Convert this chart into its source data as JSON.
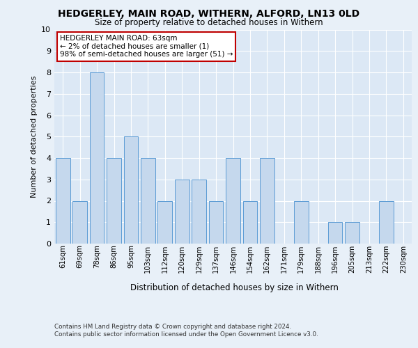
{
  "title1": "HEDGERLEY, MAIN ROAD, WITHERN, ALFORD, LN13 0LD",
  "title2": "Size of property relative to detached houses in Withern",
  "xlabel": "Distribution of detached houses by size in Withern",
  "ylabel": "Number of detached properties",
  "categories": [
    "61sqm",
    "69sqm",
    "78sqm",
    "86sqm",
    "95sqm",
    "103sqm",
    "112sqm",
    "120sqm",
    "129sqm",
    "137sqm",
    "146sqm",
    "154sqm",
    "162sqm",
    "171sqm",
    "179sqm",
    "188sqm",
    "196sqm",
    "205sqm",
    "213sqm",
    "222sqm",
    "230sqm"
  ],
  "values": [
    4,
    2,
    8,
    4,
    5,
    4,
    2,
    3,
    3,
    2,
    4,
    2,
    4,
    0,
    2,
    0,
    1,
    1,
    0,
    2,
    0
  ],
  "bar_color": "#c5d8ed",
  "bar_edge_color": "#5b9bd5",
  "highlight_color": "#c00000",
  "annotation_title": "HEDGERLEY MAIN ROAD: 63sqm",
  "annotation_line1": "← 2% of detached houses are smaller (1)",
  "annotation_line2": "98% of semi-detached houses are larger (51) →",
  "ylim": [
    0,
    10
  ],
  "yticks": [
    0,
    1,
    2,
    3,
    4,
    5,
    6,
    7,
    8,
    9,
    10
  ],
  "footer1": "Contains HM Land Registry data © Crown copyright and database right 2024.",
  "footer2": "Contains public sector information licensed under the Open Government Licence v3.0.",
  "bg_color": "#e8f0f8",
  "plot_bg_color": "#dce8f5"
}
